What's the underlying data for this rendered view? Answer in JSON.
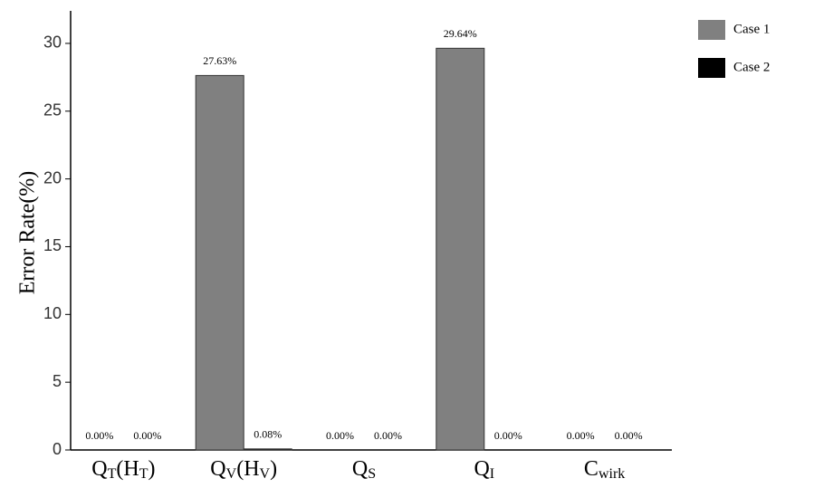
{
  "chart_data": {
    "type": "bar",
    "y_label": "Error Rate(%)",
    "categories": [
      [
        "Q",
        "T",
        "(H",
        "T",
        ")"
      ],
      [
        "Q",
        "V",
        "(H",
        "V",
        ")"
      ],
      [
        "Q",
        "S"
      ],
      [
        "Q",
        "I"
      ],
      [
        "C",
        "wirk"
      ]
    ],
    "series": [
      {
        "name": "Case 1",
        "color": "#808080",
        "values": [
          0,
          27.63,
          0,
          29.64,
          0
        ],
        "value_labels": [
          "0.00%",
          "27.63%",
          "0.00%",
          "29.64%",
          "0.00%"
        ]
      },
      {
        "name": "Case 2",
        "color": "#000000",
        "values": [
          0,
          0.08,
          0,
          0,
          0
        ],
        "value_labels": [
          "0.00%",
          "0.08%",
          "0.00%",
          "0.00%",
          "0.00%"
        ]
      }
    ],
    "ylim": [
      0,
      32.4
    ],
    "yticks": [
      0,
      5,
      10,
      15,
      20,
      25,
      30
    ],
    "grid": false,
    "legend": "top-right"
  }
}
